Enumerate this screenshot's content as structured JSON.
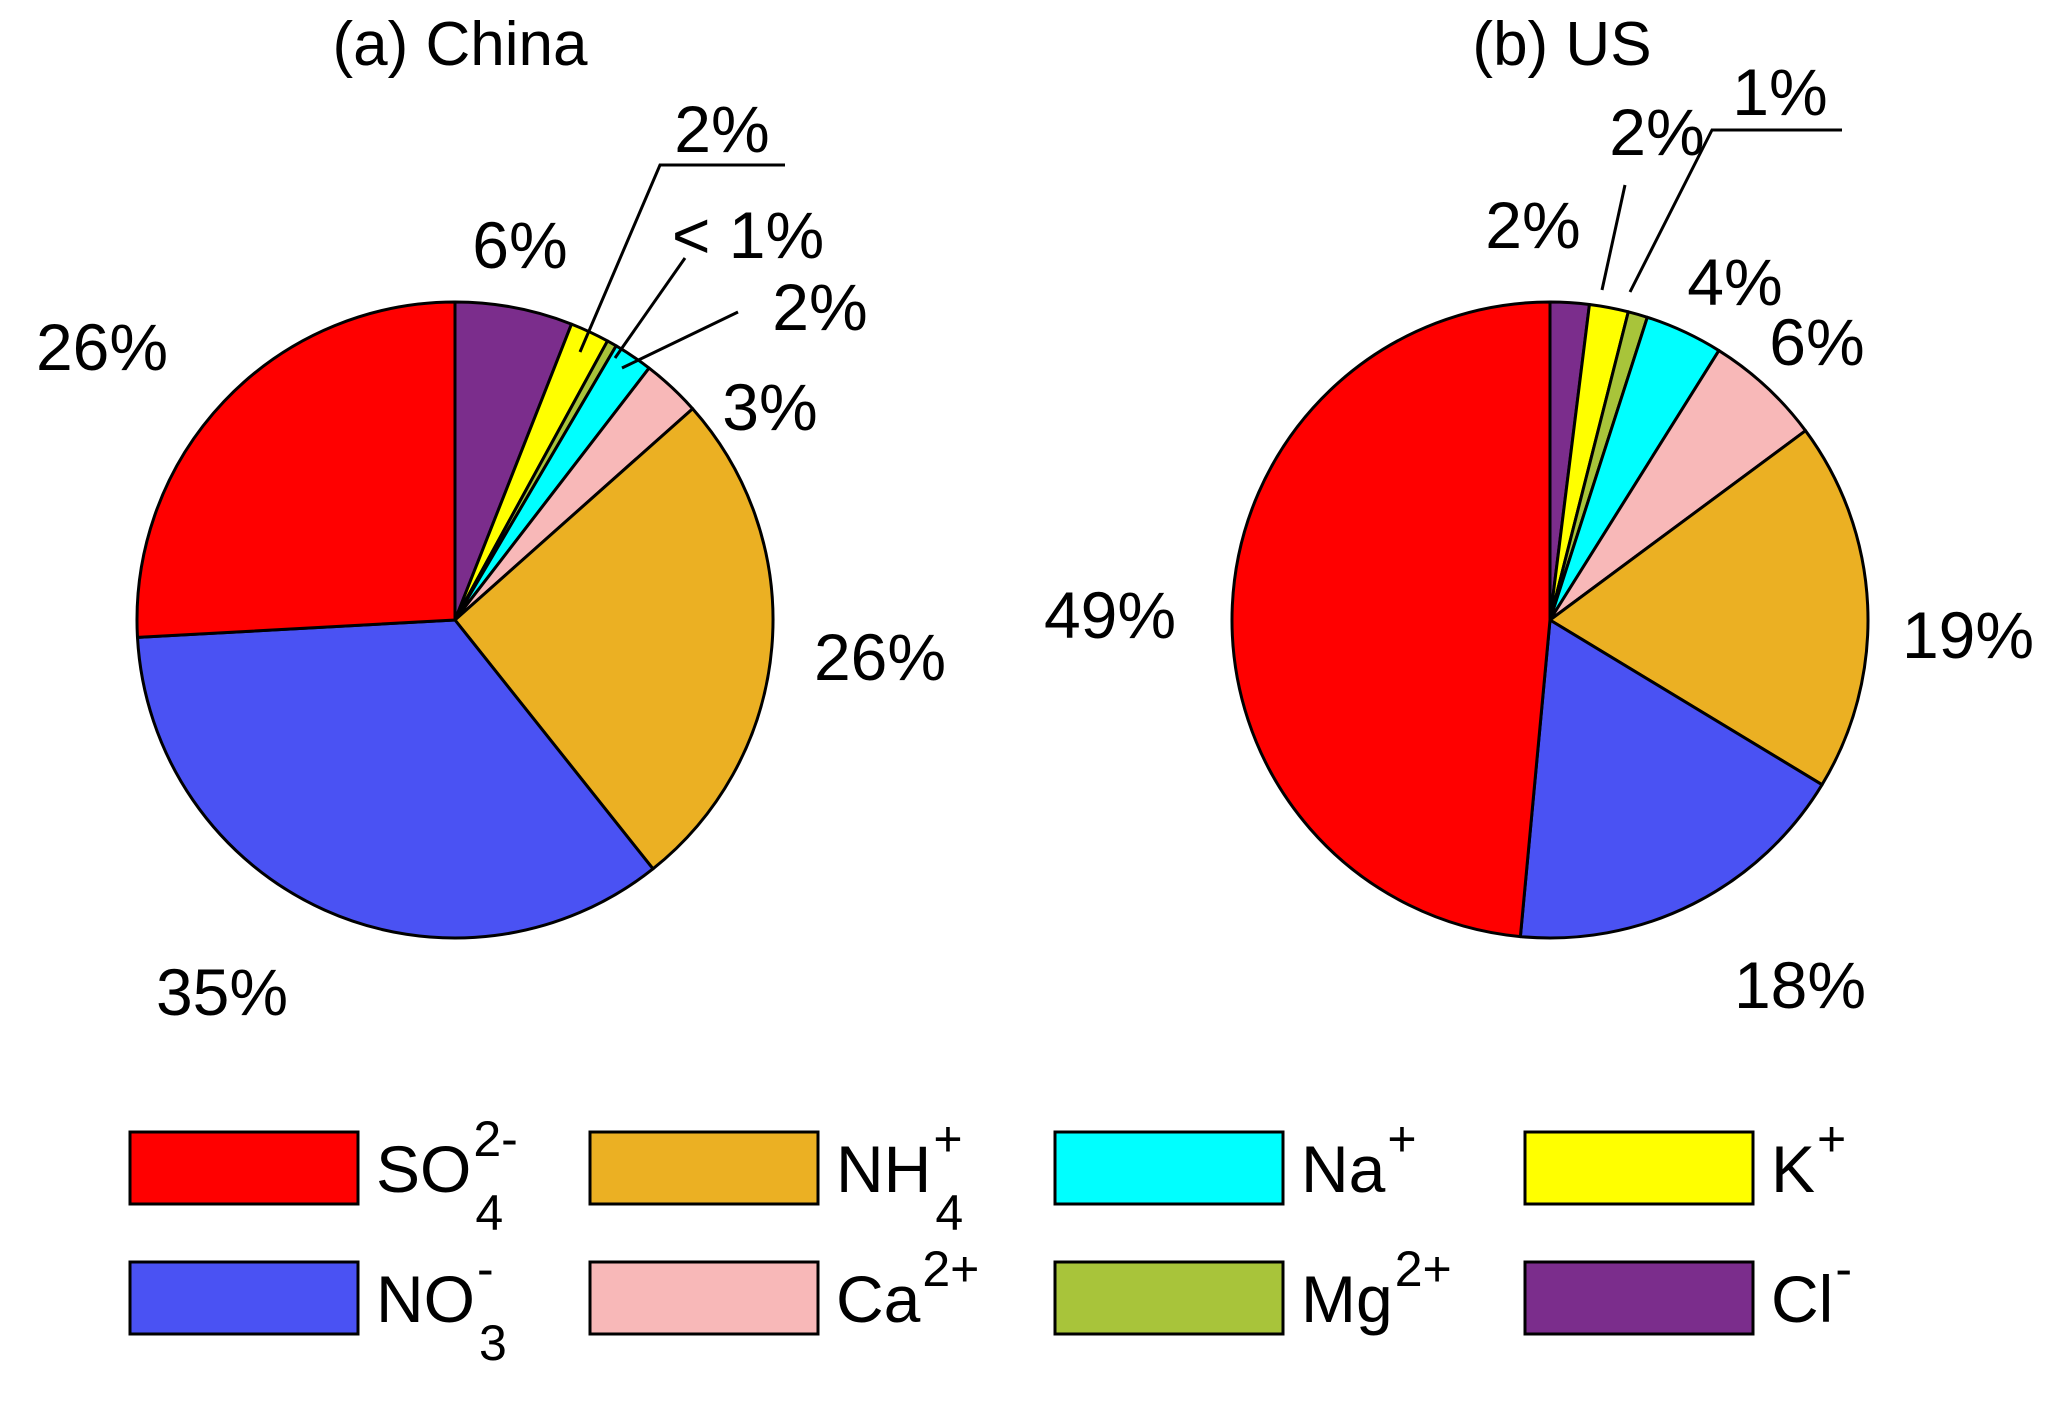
{
  "chart_data": [
    {
      "type": "pie",
      "title": "(a) China",
      "start": "12 o'clock",
      "direction": "clockwise",
      "slices": [
        {
          "key": "Cl",
          "value": 6,
          "label": "6%"
        },
        {
          "key": "K",
          "value": 2,
          "label": "2%"
        },
        {
          "key": "Mg",
          "value": 0.5,
          "label": "< 1%"
        },
        {
          "key": "Na",
          "value": 2,
          "label": "2%"
        },
        {
          "key": "Ca",
          "value": 3,
          "label": "3%"
        },
        {
          "key": "NH4",
          "value": 26,
          "label": "26%"
        },
        {
          "key": "NO3",
          "value": 35,
          "label": "35%"
        },
        {
          "key": "SO4",
          "value": 26,
          "label": "26%"
        }
      ]
    },
    {
      "type": "pie",
      "title": "(b) US",
      "start": "12 o'clock",
      "direction": "clockwise",
      "slices": [
        {
          "key": "Cl",
          "value": 2,
          "label": "2%"
        },
        {
          "key": "K",
          "value": 2,
          "label": "2%"
        },
        {
          "key": "Mg",
          "value": 1,
          "label": "1%"
        },
        {
          "key": "Na",
          "value": 4,
          "label": "4%"
        },
        {
          "key": "Ca",
          "value": 6,
          "label": "6%"
        },
        {
          "key": "NH4",
          "value": 19,
          "label": "19%"
        },
        {
          "key": "NO3",
          "value": 18,
          "label": "18%"
        },
        {
          "key": "SO4",
          "value": 49,
          "label": "49%"
        }
      ]
    }
  ],
  "legend": {
    "placement": "bottom",
    "items": [
      {
        "key": "SO4",
        "base": "SO",
        "sup": "2-",
        "sub": "4",
        "color": "#ff0000"
      },
      {
        "key": "NH4",
        "base": "NH",
        "sup": "+",
        "sub": "4",
        "color": "#ebb023"
      },
      {
        "key": "Na",
        "base": "Na",
        "sup": "+",
        "sub": "",
        "color": "#00ffff"
      },
      {
        "key": "K",
        "base": "K",
        "sup": "+",
        "sub": "",
        "color": "#ffff00"
      },
      {
        "key": "NO3",
        "base": "NO",
        "sup": "-",
        "sub": "3",
        "color": "#4a52f3"
      },
      {
        "key": "Ca",
        "base": "Ca",
        "sup": "2+",
        "sub": "",
        "color": "#f8b8b8"
      },
      {
        "key": "Mg",
        "base": "Mg",
        "sup": "2+",
        "sub": "",
        "color": "#a8c43a"
      },
      {
        "key": "Cl",
        "base": "Cl",
        "sup": "-",
        "sub": "",
        "color": "#7b2d8c"
      }
    ]
  }
}
